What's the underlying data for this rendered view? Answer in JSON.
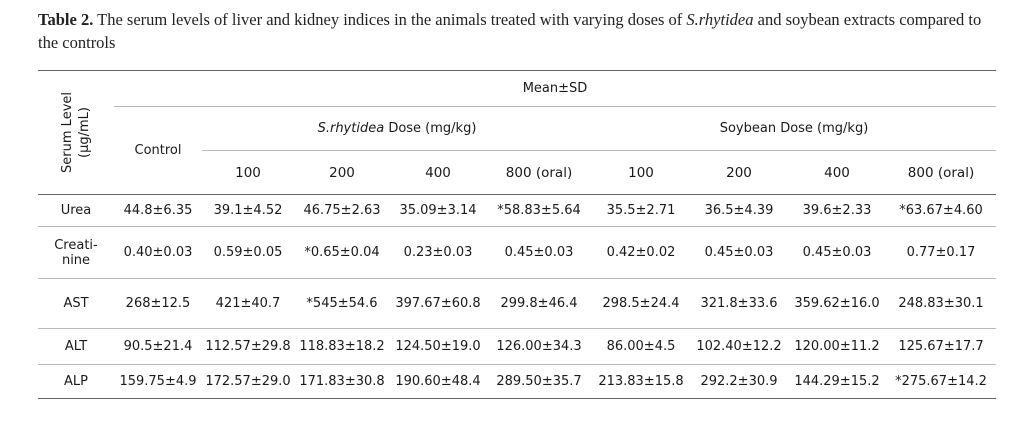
{
  "caption": {
    "label": "Table 2.",
    "text_before": " The serum levels of liver and kidney indices in the animals treated with varying doses of ",
    "species": "S.rhytidea",
    "text_after": " and soybean extracts compared to the controls"
  },
  "table": {
    "corner_header_line1": "Serum Level",
    "corner_header_line2": "(µg/mL)",
    "mean_header": "Mean±SD",
    "control_header": "Control",
    "srhytidea_group": {
      "species": "S.rhytidea",
      "suffix": " Dose (mg/kg)",
      "doses": [
        "100",
        "200",
        "400",
        "800 (oral)"
      ]
    },
    "soybean_group": {
      "label": "Soybean Dose (mg/kg)",
      "doses": [
        "100",
        "200",
        "400",
        "800 (oral)"
      ]
    },
    "rows": [
      {
        "label_line1": "Urea",
        "label_line2": "",
        "values": [
          "44.8±6.35",
          "39.1±4.52",
          "46.75±2.63",
          "35.09±3.14",
          "*58.83±5.64",
          "35.5±2.71",
          "36.5±4.39",
          "39.6±2.33",
          "*63.67±4.60"
        ]
      },
      {
        "label_line1": "Creati-",
        "label_line2": "nine",
        "values": [
          "0.40±0.03",
          "0.59±0.05",
          "*0.65±0.04",
          "0.23±0.03",
          "0.45±0.03",
          "0.42±0.02",
          "0.45±0.03",
          "0.45±0.03",
          "0.77±0.17"
        ]
      },
      {
        "label_line1": "AST",
        "label_line2": "",
        "values": [
          "268±12.5",
          "421±40.7",
          "*545±54.6",
          "397.67±60.8",
          "299.8±46.4",
          "298.5±24.4",
          "321.8±33.6",
          "359.62±16.0",
          "248.83±30.1"
        ]
      },
      {
        "label_line1": "ALT",
        "label_line2": "",
        "values": [
          "90.5±21.4",
          "112.57±29.8",
          "118.83±18.2",
          "124.50±19.0",
          "126.00±34.3",
          "86.00±4.5",
          "102.40±12.2",
          "120.00±11.2",
          "125.67±17.7"
        ]
      },
      {
        "label_line1": "ALP",
        "label_line2": "",
        "values": [
          "159.75±4.9",
          "172.57±29.0",
          "171.83±30.8",
          "190.60±48.4",
          "289.50±35.7",
          "213.83±15.8",
          "292.2±30.9",
          "144.29±15.2",
          "*275.67±14.2"
        ]
      }
    ]
  }
}
